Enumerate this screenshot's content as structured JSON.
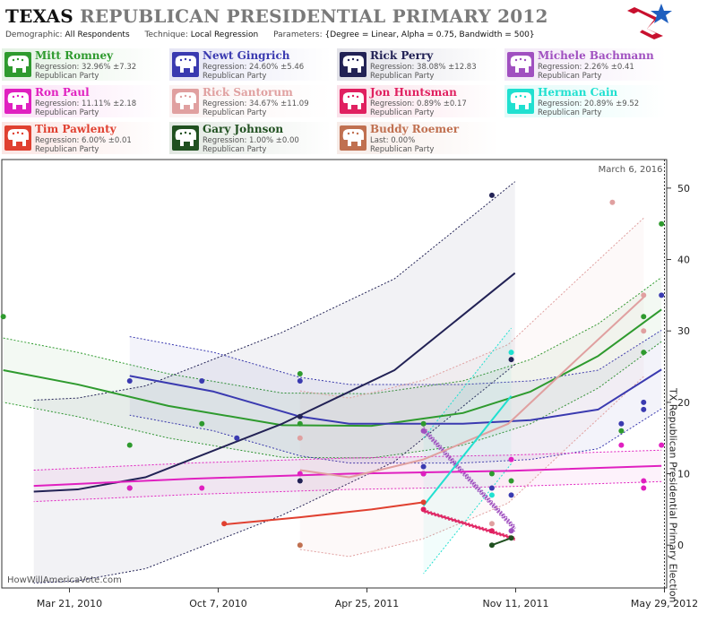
{
  "header": {
    "title_state": "TEXAS",
    "title_rest": "REPUBLICAN PRESIDENTIAL PRIMARY 2012",
    "demographic_label": "Demographic:",
    "demographic_value": "All Respondents",
    "technique_label": "Technique:",
    "technique_value": "Local Regression",
    "parameters_label": "Parameters:",
    "parameters_value": "{Degree = Linear, Alpha = 0.75, Bandwidth = 500}"
  },
  "candidates": [
    {
      "name": "Mitt Romney",
      "regression": "Regression: 32.96% ±7.32",
      "party": "Republican Party",
      "color": "#2e9a2e"
    },
    {
      "name": "Newt Gingrich",
      "regression": "Regression: 24.60% ±5.46",
      "party": "Republican Party",
      "color": "#3a3ab0"
    },
    {
      "name": "Rick Perry",
      "regression": "Regression: 38.08% ±12.83",
      "party": "Republican Party",
      "color": "#222255"
    },
    {
      "name": "Michele Bachmann",
      "regression": "Regression: 2.26% ±0.41",
      "party": "Republican Party",
      "color": "#a050c0"
    },
    {
      "name": "Ron Paul",
      "regression": "Regression: 11.11% ±2.18",
      "party": "Republican Party",
      "color": "#e020c0"
    },
    {
      "name": "Rick Santorum",
      "regression": "Regression: 34.67% ±11.09",
      "party": "Republican Party",
      "color": "#e0a0a0"
    },
    {
      "name": "Jon Huntsman",
      "regression": "Regression: 0.89% ±0.17",
      "party": "Republican Party",
      "color": "#e02060"
    },
    {
      "name": "Herman Cain",
      "regression": "Regression: 20.89% ±9.52",
      "party": "Republican Party",
      "color": "#20e0d0"
    },
    {
      "name": "Tim Pawlenty",
      "regression": "Regression: 6.00% ±0.01",
      "party": "Republican Party",
      "color": "#e04030"
    },
    {
      "name": "Gary Johnson",
      "regression": "Regression: 1.00% ±0.00",
      "party": "Republican Party",
      "color": "#205020"
    },
    {
      "name": "Buddy Roemer",
      "regression": "Last: 0.00%",
      "party": "Republican Party",
      "color": "#c07050"
    }
  ],
  "chart_data": {
    "type": "scatter",
    "date_annotation": "March 6, 2016",
    "election_label": "TX Republican Presidential Primary Election",
    "watermark": "HowWillAmericaVote.com",
    "x_ticks": [
      "Mar 21, 2010",
      "Oct 7, 2010",
      "Apr 25, 2011",
      "Nov 11, 2011",
      "May 29, 2012"
    ],
    "x_range": [
      "2009-12-20",
      "2012-06-01"
    ],
    "y_ticks": [
      0,
      10,
      20,
      30,
      40,
      50
    ],
    "ylim": [
      -6,
      54
    ],
    "election_date": "2012-05-29",
    "series": [
      {
        "name": "Mitt Romney",
        "color": "#2e9a2e",
        "line": [
          [
            "2009-12-22",
            24.5
          ],
          [
            "2010-04-01",
            22.5
          ],
          [
            "2010-08-01",
            19.5
          ],
          [
            "2011-01-01",
            16.8
          ],
          [
            "2011-05-01",
            16.7
          ],
          [
            "2011-09-01",
            18.5
          ],
          [
            "2011-12-01",
            21.5
          ],
          [
            "2012-03-01",
            26.5
          ],
          [
            "2012-05-25",
            33.0
          ]
        ],
        "band": 4.5,
        "points": [
          [
            "2009-12-22",
            32
          ],
          [
            "2010-06-10",
            14
          ],
          [
            "2010-09-15",
            17
          ],
          [
            "2011-01-25",
            24
          ],
          [
            "2011-01-25",
            17
          ],
          [
            "2011-07-10",
            17
          ],
          [
            "2011-10-10",
            10
          ],
          [
            "2011-11-05",
            9
          ],
          [
            "2012-04-01",
            16
          ],
          [
            "2012-05-01",
            27
          ],
          [
            "2012-05-01",
            32
          ],
          [
            "2012-05-25",
            45
          ]
        ]
      },
      {
        "name": "Newt Gingrich",
        "color": "#3a3ab0",
        "line": [
          [
            "2010-06-10",
            23.7
          ],
          [
            "2010-10-01",
            21.5
          ],
          [
            "2011-01-25",
            18.0
          ],
          [
            "2011-04-01",
            17.0
          ],
          [
            "2011-09-01",
            17.0
          ],
          [
            "2011-12-01",
            17.5
          ],
          [
            "2012-03-01",
            19.0
          ],
          [
            "2012-05-25",
            24.6
          ]
        ],
        "band": 5.5,
        "points": [
          [
            "2010-06-10",
            23
          ],
          [
            "2010-09-15",
            23
          ],
          [
            "2010-11-01",
            15
          ],
          [
            "2011-01-25",
            23
          ],
          [
            "2011-07-10",
            11
          ],
          [
            "2011-10-10",
            8
          ],
          [
            "2011-11-05",
            7
          ],
          [
            "2012-04-01",
            17
          ],
          [
            "2012-05-01",
            20
          ],
          [
            "2012-05-01",
            19
          ],
          [
            "2012-05-25",
            35
          ]
        ]
      },
      {
        "name": "Rick Perry",
        "color": "#222255",
        "line": [
          [
            "2010-02-01",
            7.5
          ],
          [
            "2010-04-01",
            7.8
          ],
          [
            "2010-07-01",
            9.5
          ],
          [
            "2011-01-01",
            17.0
          ],
          [
            "2011-06-01",
            24.5
          ],
          [
            "2011-11-10",
            38.1
          ]
        ],
        "band": 12.8,
        "points": [
          [
            "2010-06-10",
            8
          ],
          [
            "2011-01-25",
            9
          ],
          [
            "2011-01-25",
            18
          ],
          [
            "2011-07-10",
            10
          ],
          [
            "2011-10-10",
            49
          ],
          [
            "2011-11-05",
            26
          ]
        ]
      },
      {
        "name": "Michele Bachmann",
        "color": "#a050c0",
        "line": [
          [
            "2011-07-10",
            16.2
          ],
          [
            "2011-11-10",
            2.3
          ]
        ],
        "band": 0.4,
        "points": [
          [
            "2011-07-10",
            16
          ],
          [
            "2011-11-05",
            2
          ]
        ]
      },
      {
        "name": "Ron Paul",
        "color": "#e020c0",
        "line": [
          [
            "2010-02-01",
            8.3
          ],
          [
            "2010-09-01",
            9.3
          ],
          [
            "2011-04-01",
            10.0
          ],
          [
            "2011-11-01",
            10.4
          ],
          [
            "2012-05-25",
            11.1
          ]
        ],
        "band": 2.2,
        "points": [
          [
            "2010-06-10",
            8
          ],
          [
            "2010-09-15",
            8
          ],
          [
            "2011-01-25",
            10
          ],
          [
            "2011-07-10",
            10
          ],
          [
            "2011-11-05",
            12
          ],
          [
            "2012-04-01",
            14
          ],
          [
            "2012-05-01",
            9
          ],
          [
            "2012-05-01",
            8
          ],
          [
            "2012-05-25",
            14
          ]
        ]
      },
      {
        "name": "Rick Santorum",
        "color": "#e0a0a0",
        "line": [
          [
            "2011-01-25",
            10.5
          ],
          [
            "2011-04-01",
            9.5
          ],
          [
            "2011-07-10",
            12.0
          ],
          [
            "2011-11-01",
            17.0
          ],
          [
            "2012-02-01",
            26.0
          ],
          [
            "2012-05-01",
            34.7
          ]
        ],
        "band": 11.1,
        "points": [
          [
            "2011-01-25",
            15
          ],
          [
            "2011-10-10",
            3
          ],
          [
            "2012-03-20",
            48
          ],
          [
            "2012-05-01",
            30
          ],
          [
            "2012-05-01",
            35
          ]
        ]
      },
      {
        "name": "Jon Huntsman",
        "color": "#e02060",
        "line": [
          [
            "2011-07-10",
            4.8
          ],
          [
            "2011-11-10",
            0.9
          ]
        ],
        "band": 0.2,
        "points": [
          [
            "2011-07-10",
            5
          ],
          [
            "2011-10-10",
            2
          ]
        ]
      },
      {
        "name": "Herman Cain",
        "color": "#20e0d0",
        "line": [
          [
            "2011-07-10",
            5.5
          ],
          [
            "2011-11-05",
            20.9
          ]
        ],
        "band": 9.5,
        "points": [
          [
            "2011-11-05",
            27
          ],
          [
            "2011-10-10",
            7
          ]
        ]
      },
      {
        "name": "Tim Pawlenty",
        "color": "#e04030",
        "line": [
          [
            "2010-10-15",
            2.9
          ],
          [
            "2011-01-25",
            3.9
          ],
          [
            "2011-05-01",
            5.0
          ],
          [
            "2011-07-10",
            6.0
          ]
        ],
        "band": 0.0,
        "points": [
          [
            "2010-10-15",
            3
          ],
          [
            "2011-07-10",
            6
          ]
        ]
      },
      {
        "name": "Gary Johnson",
        "color": "#205020",
        "line": [
          [
            "2011-10-10",
            0.0
          ],
          [
            "2011-11-05",
            1.0
          ]
        ],
        "band": 0.0,
        "points": [
          [
            "2011-10-10",
            0
          ],
          [
            "2011-11-05",
            1
          ]
        ]
      },
      {
        "name": "Buddy Roemer",
        "color": "#c07050",
        "line": [],
        "band": 0.0,
        "points": [
          [
            "2011-01-25",
            0
          ]
        ]
      }
    ]
  }
}
